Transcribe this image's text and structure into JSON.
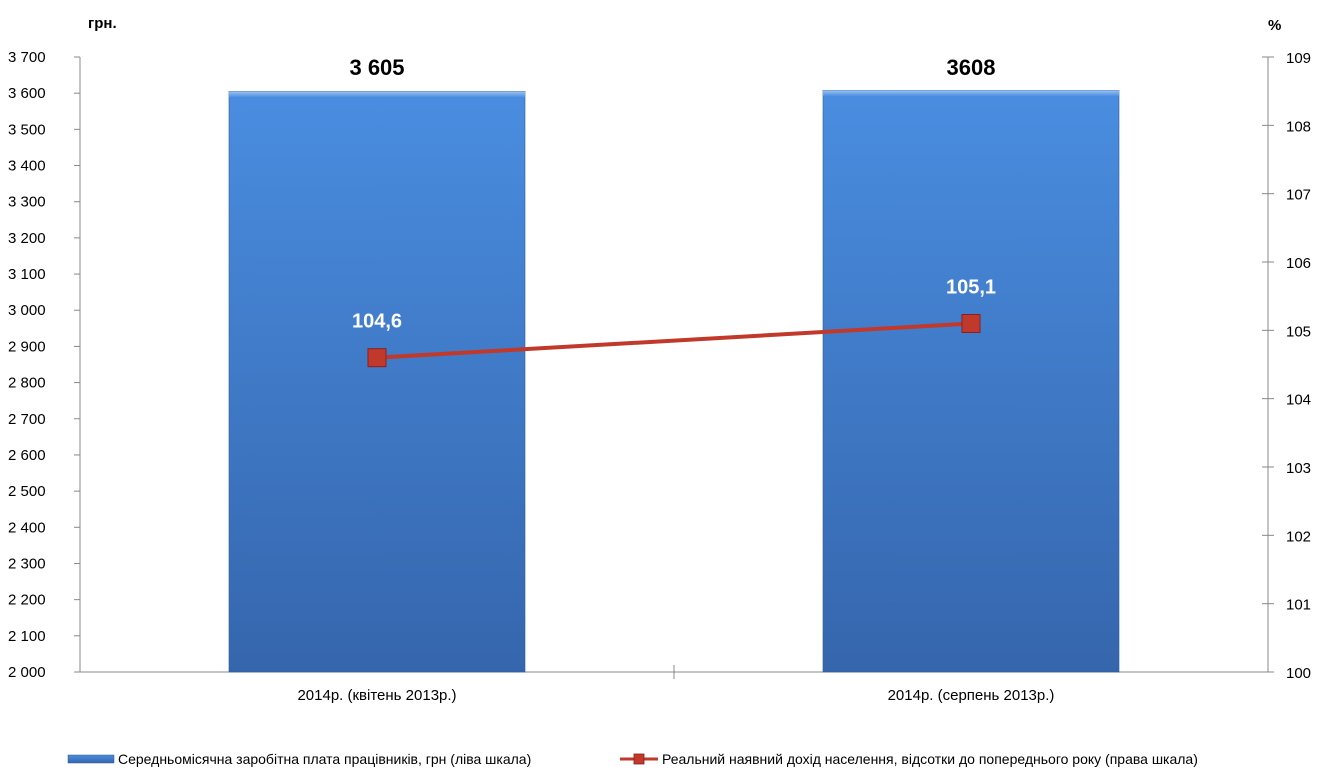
{
  "chart_data": {
    "type": "bar",
    "y_left_unit": "грн.",
    "y_right_unit": "%",
    "categories": [
      "2014р. (квітень 2013р.)",
      "2014р. (серпень 2013р.)"
    ],
    "ylim_left": [
      2000,
      3700
    ],
    "ylim_right": [
      100,
      109
    ],
    "left_ticks": [
      "2 000",
      "2 100",
      "2 200",
      "2 300",
      "2 400",
      "2 500",
      "2 600",
      "2 700",
      "2 800",
      "2 900",
      "3 000",
      "3 100",
      "3 200",
      "3 300",
      "3 400",
      "3 500",
      "3 600",
      "3 700"
    ],
    "right_ticks": [
      "100",
      "101",
      "102",
      "103",
      "104",
      "105",
      "106",
      "107",
      "108",
      "109"
    ],
    "series": [
      {
        "name": "Середньомісячна заробітна плата працівників, грн (ліва шкала)",
        "type": "bar",
        "axis": "left",
        "values": [
          3605,
          3608
        ],
        "labels": [
          "3 605",
          "3608"
        ],
        "color": "#3d7fd0"
      },
      {
        "name": "Реальний наявний дохід населення, відсотки до попереднього року (права шкала)",
        "type": "line",
        "axis": "right",
        "values": [
          104.6,
          105.1
        ],
        "labels": [
          "104,6",
          "105,1"
        ],
        "color": "#c0392b"
      }
    ],
    "legend_position": "bottom",
    "grid": false
  }
}
